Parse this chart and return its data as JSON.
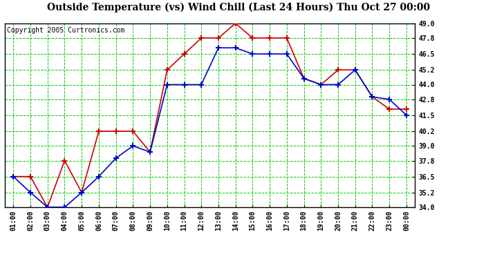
{
  "title": "Outside Temperature (vs) Wind Chill (Last 24 Hours) Thu Oct 27 00:00",
  "copyright": "Copyright 2005 Curtronics.com",
  "x_labels": [
    "01:00",
    "02:00",
    "03:00",
    "04:00",
    "05:00",
    "06:00",
    "07:00",
    "08:00",
    "09:00",
    "10:00",
    "11:00",
    "12:00",
    "13:00",
    "14:00",
    "15:00",
    "16:00",
    "17:00",
    "18:00",
    "19:00",
    "20:00",
    "21:00",
    "22:00",
    "23:00",
    "00:00"
  ],
  "outside_temp": [
    36.5,
    35.2,
    34.0,
    34.0,
    35.2,
    36.5,
    38.0,
    39.0,
    38.5,
    44.0,
    44.0,
    44.0,
    47.0,
    47.0,
    46.5,
    46.5,
    46.5,
    44.5,
    44.0,
    44.0,
    45.2,
    43.0,
    42.8,
    41.5
  ],
  "wind_chill": [
    36.5,
    36.5,
    34.0,
    37.8,
    35.2,
    40.2,
    40.2,
    40.2,
    38.5,
    45.2,
    46.5,
    47.8,
    47.8,
    49.0,
    47.8,
    47.8,
    47.8,
    44.5,
    44.0,
    45.2,
    45.2,
    43.0,
    42.0,
    42.0
  ],
  "temp_color": "#0000cc",
  "wind_color": "#cc0000",
  "bg_color": "#ffffff",
  "plot_bg": "#ffffff",
  "grid_color": "#00cc00",
  "ylim": [
    34.0,
    49.0
  ],
  "yticks": [
    34.0,
    35.2,
    36.5,
    37.8,
    39.0,
    40.2,
    41.5,
    42.8,
    44.0,
    45.2,
    46.5,
    47.8,
    49.0
  ],
  "title_fontsize": 10,
  "tick_fontsize": 7,
  "copyright_fontsize": 7
}
